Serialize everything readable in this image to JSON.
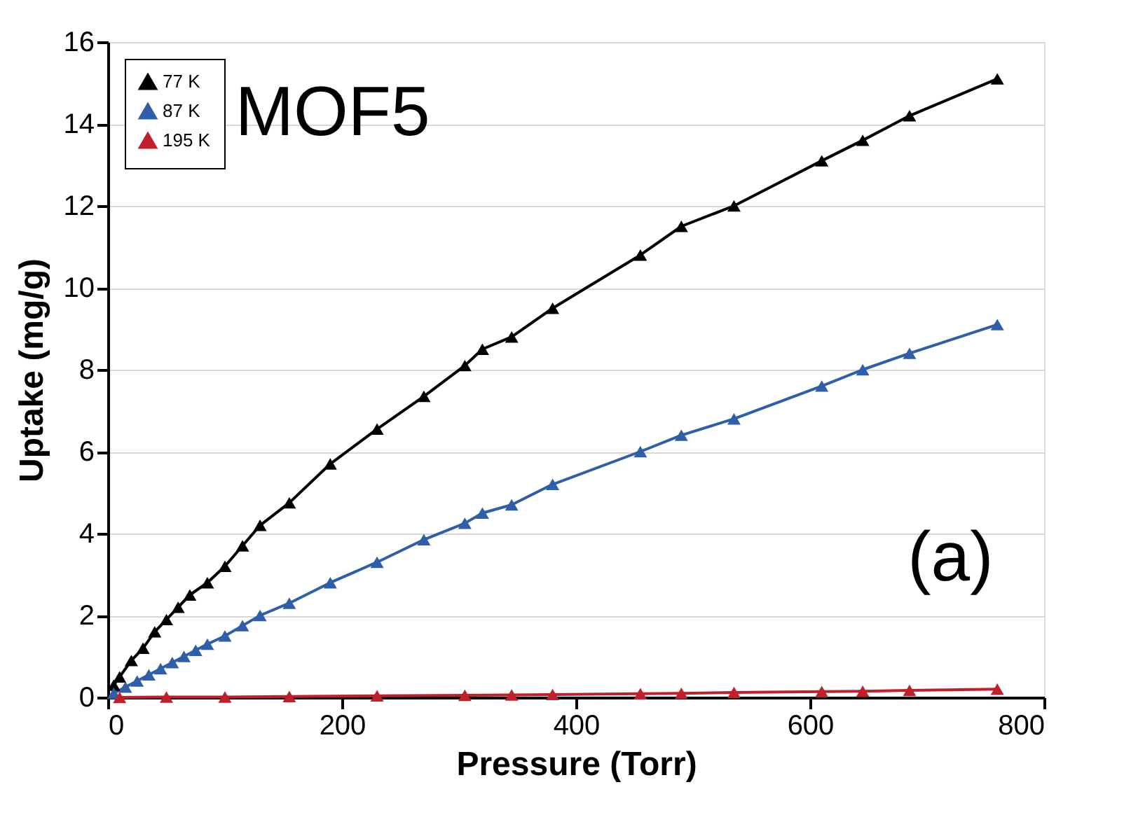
{
  "chart_data": {
    "type": "line",
    "xlabel": "Pressure (Torr)",
    "ylabel": "Uptake (mg/g)",
    "xlim": [
      0,
      800
    ],
    "xticks": [
      0,
      200,
      400,
      600,
      800
    ],
    "ylim": [
      0,
      16
    ],
    "yticks": [
      0,
      2,
      4,
      6,
      8,
      10,
      12,
      14,
      16
    ],
    "grid": "y",
    "legend": "top left",
    "marker": "triangle",
    "line_style": "solid",
    "annotations": [
      "MOF5",
      "(a)"
    ],
    "series": [
      {
        "name": "77 K",
        "color": "#000000",
        "x": [
          5,
          10,
          20,
          30,
          40,
          50,
          60,
          70,
          85,
          100,
          115,
          130,
          155,
          190,
          230,
          270,
          305,
          320,
          345,
          380,
          455,
          490,
          535,
          610,
          645,
          685,
          760
        ],
        "values": [
          0.3,
          0.5,
          0.9,
          1.2,
          1.6,
          1.9,
          2.2,
          2.5,
          2.8,
          3.2,
          3.7,
          4.2,
          4.75,
          5.7,
          6.55,
          7.35,
          8.1,
          8.5,
          8.8,
          9.5,
          10.8,
          11.5,
          12.0,
          13.1,
          13.6,
          14.2,
          15.1
        ]
      },
      {
        "name": "87 K",
        "color": "#2e5fa8",
        "x": [
          5,
          15,
          25,
          35,
          45,
          55,
          65,
          75,
          85,
          100,
          115,
          130,
          155,
          190,
          230,
          270,
          305,
          320,
          345,
          380,
          455,
          490,
          535,
          610,
          645,
          685,
          760
        ],
        "values": [
          0.1,
          0.25,
          0.4,
          0.55,
          0.7,
          0.85,
          1.0,
          1.15,
          1.3,
          1.5,
          1.75,
          2.0,
          2.3,
          2.8,
          3.3,
          3.85,
          4.25,
          4.5,
          4.7,
          5.2,
          6.0,
          6.4,
          6.8,
          7.6,
          8.0,
          8.4,
          9.1
        ]
      },
      {
        "name": "195 K",
        "color": "#c0202a",
        "x": [
          10,
          50,
          100,
          155,
          230,
          305,
          345,
          380,
          455,
          490,
          535,
          610,
          645,
          685,
          760
        ],
        "values": [
          0,
          0.01,
          0.01,
          0.02,
          0.04,
          0.05,
          0.06,
          0.07,
          0.09,
          0.1,
          0.12,
          0.14,
          0.15,
          0.17,
          0.2
        ]
      }
    ]
  }
}
